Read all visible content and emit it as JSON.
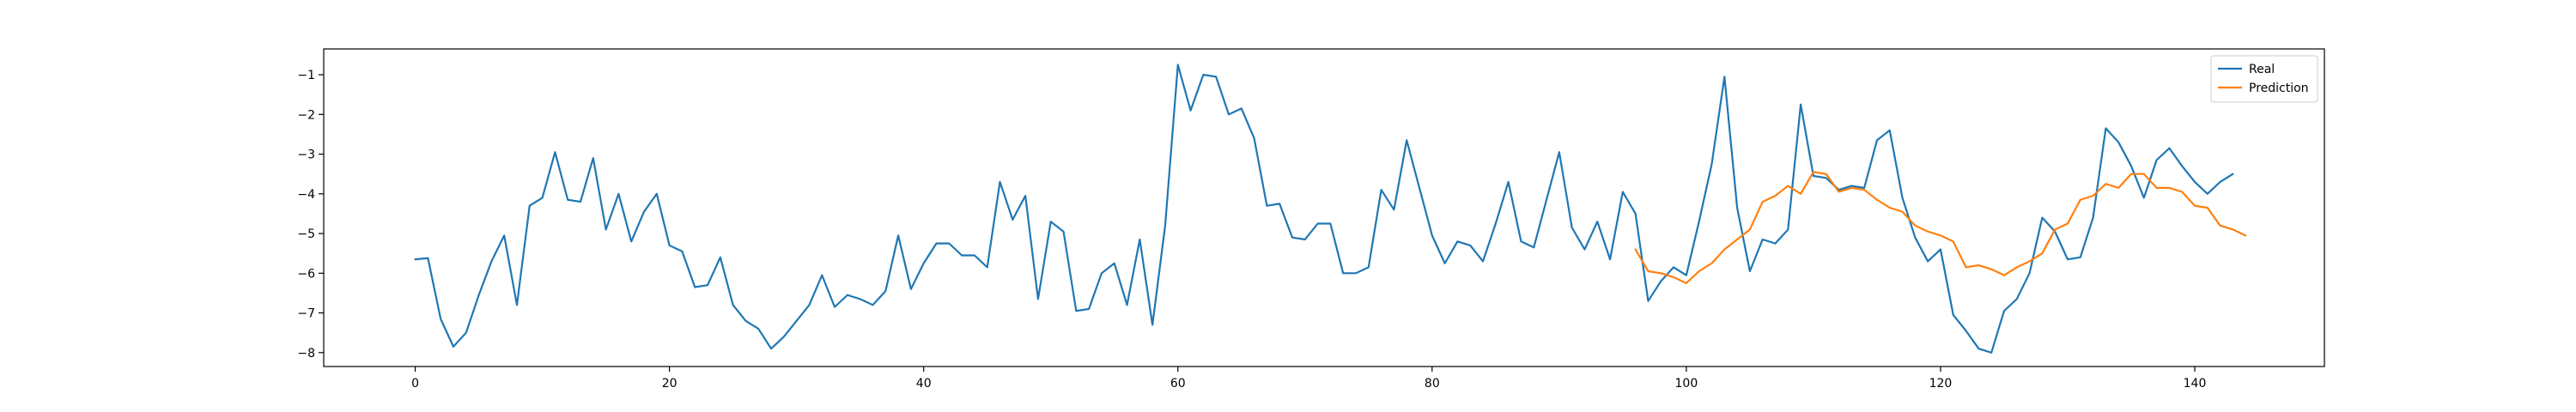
{
  "chart_data": {
    "type": "line",
    "title": "",
    "xlabel": "",
    "ylabel": "",
    "xlim": [
      -7.2,
      150.2
    ],
    "ylim": [
      -8.35,
      -0.35
    ],
    "x_ticks": [
      0,
      20,
      40,
      60,
      80,
      100,
      120,
      140
    ],
    "y_ticks": [
      -1,
      -2,
      -3,
      -4,
      -5,
      -6,
      -7,
      -8
    ],
    "grid": false,
    "legend_position": "top-right",
    "series": [
      {
        "name": "Real",
        "color": "#1f77b4",
        "x_start": 0,
        "values": [
          -5.65,
          -5.62,
          -7.15,
          -7.85,
          -7.5,
          -6.55,
          -5.7,
          -5.05,
          -6.8,
          -4.3,
          -4.1,
          -2.95,
          -4.15,
          -4.2,
          -3.1,
          -4.9,
          -4.0,
          -5.2,
          -4.45,
          -4.0,
          -5.3,
          -5.45,
          -6.35,
          -6.3,
          -5.6,
          -6.8,
          -7.2,
          -7.4,
          -7.9,
          -7.6,
          -7.2,
          -6.8,
          -6.05,
          -6.85,
          -6.55,
          -6.65,
          -6.8,
          -6.45,
          -5.05,
          -6.4,
          -5.75,
          -5.25,
          -5.25,
          -5.55,
          -5.55,
          -5.85,
          -3.7,
          -4.65,
          -4.05,
          -6.65,
          -4.7,
          -4.95,
          -6.95,
          -6.9,
          -6.0,
          -5.75,
          -6.8,
          -5.15,
          -7.3,
          -4.8,
          -0.75,
          -1.9,
          -1.0,
          -1.05,
          -2.0,
          -1.85,
          -2.6,
          -4.3,
          -4.25,
          -5.1,
          -5.15,
          -4.75,
          -4.75,
          -6.0,
          -6.0,
          -5.85,
          -3.9,
          -4.4,
          -2.65,
          -3.85,
          -5.05,
          -5.75,
          -5.2,
          -5.3,
          -5.7,
          -4.75,
          -3.7,
          -5.2,
          -5.35,
          -4.15,
          -2.95,
          -4.85,
          -5.4,
          -4.7,
          -5.65,
          -3.95,
          -4.5,
          -6.7,
          -6.2,
          -5.85,
          -6.05,
          -4.7,
          -3.25,
          -1.05,
          -4.35,
          -5.95,
          -5.15,
          -5.25,
          -4.9,
          -1.75,
          -3.55,
          -3.6,
          -3.9,
          -3.8,
          -3.85,
          -2.65,
          -2.4,
          -4.1,
          -5.1,
          -5.7,
          -5.4,
          -7.05,
          -7.45,
          -7.9,
          -8.0,
          -6.95,
          -6.65,
          -6.0,
          -4.6,
          -4.95,
          -5.65,
          -5.6,
          -4.6,
          -2.35,
          -2.7,
          -3.3,
          -4.1,
          -3.15,
          -2.85,
          -3.3,
          -3.7,
          -4.0,
          -3.7,
          -3.5
        ]
      },
      {
        "name": "Prediction",
        "color": "#ff7f0e",
        "x_start": 96,
        "values": [
          -5.4,
          -5.95,
          -6.0,
          -6.1,
          -6.25,
          -5.95,
          -5.75,
          -5.4,
          -5.15,
          -4.9,
          -4.2,
          -4.05,
          -3.8,
          -4.0,
          -3.45,
          -3.5,
          -3.95,
          -3.85,
          -3.9,
          -4.15,
          -4.35,
          -4.45,
          -4.8,
          -4.95,
          -5.05,
          -5.2,
          -5.85,
          -5.8,
          -5.9,
          -6.05,
          -5.85,
          -5.7,
          -5.5,
          -4.9,
          -4.75,
          -4.15,
          -4.05,
          -3.75,
          -3.85,
          -3.5,
          -3.5,
          -3.85,
          -3.85,
          -3.95,
          -4.3,
          -4.35,
          -4.8,
          -4.9,
          -5.05
        ]
      }
    ]
  }
}
